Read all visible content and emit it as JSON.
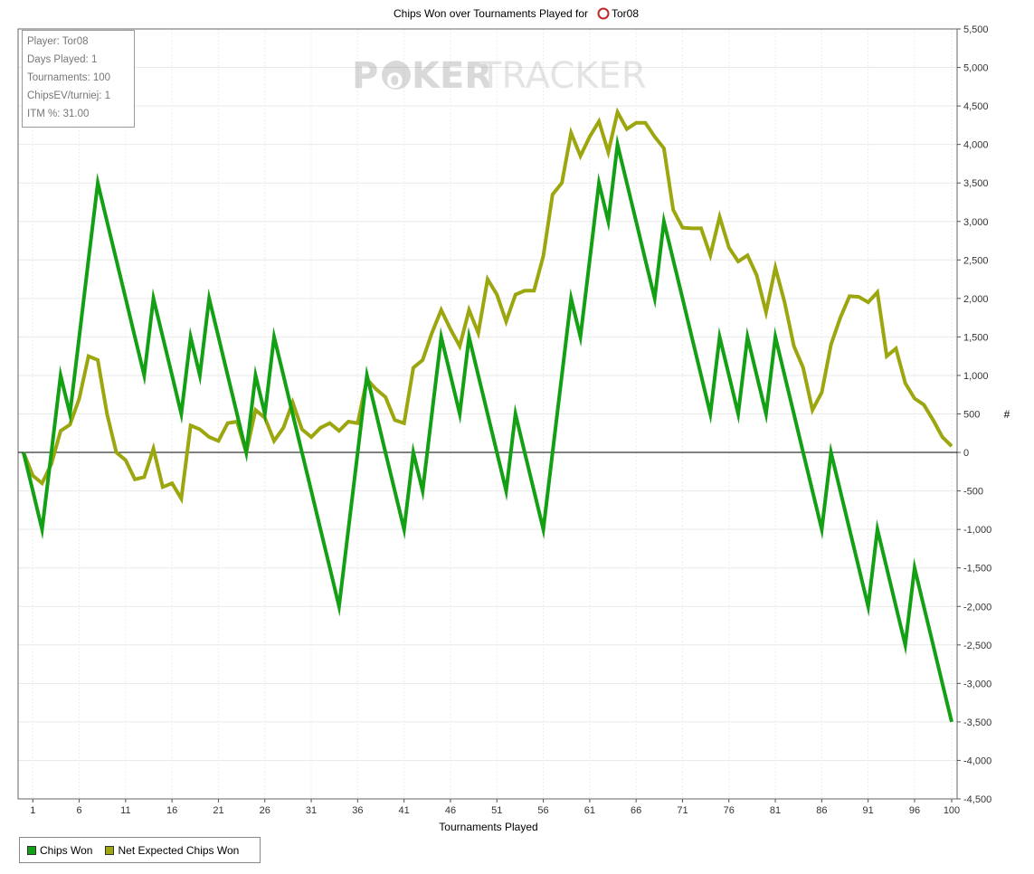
{
  "chart_data": {
    "type": "line",
    "title": "Chips Won over Tournaments Played for",
    "player_name": "Tor08",
    "player_icon": "red-pokerstars-icon",
    "xlabel": "Tournaments Played",
    "ylabel": "#",
    "xlim": [
      1,
      100
    ],
    "ylim": [
      -4500,
      5500
    ],
    "x_ticks": [
      "1",
      "6",
      "11",
      "16",
      "21",
      "26",
      "31",
      "36",
      "41",
      "46",
      "51",
      "56",
      "61",
      "66",
      "71",
      "76",
      "81",
      "86",
      "91",
      "96",
      "100"
    ],
    "y_ticks": [
      "5,500",
      "5,000",
      "4,500",
      "4,000",
      "3,500",
      "3,000",
      "2,500",
      "2,000",
      "1,500",
      "1,000",
      "500",
      "0",
      "-500",
      "-1,000",
      "-1,500",
      "-2,000",
      "-2,500",
      "-3,000",
      "-3,500",
      "-4,000",
      "-4,500"
    ],
    "grid": true,
    "legend_position": "bottom-left",
    "series": [
      {
        "name": "Chips Won",
        "color": "#14a014",
        "x": [
          0,
          1,
          2,
          3,
          4,
          5,
          6,
          7,
          8,
          9,
          10,
          11,
          12,
          13,
          14,
          15,
          16,
          17,
          18,
          19,
          20,
          21,
          22,
          23,
          24,
          25,
          26,
          27,
          28,
          29,
          30,
          31,
          32,
          33,
          34,
          35,
          36,
          37,
          38,
          39,
          40,
          41,
          42,
          43,
          44,
          45,
          46,
          47,
          48,
          49,
          50,
          51,
          52,
          53,
          54,
          55,
          56,
          57,
          58,
          59,
          60,
          61,
          62,
          63,
          64,
          65,
          66,
          67,
          68,
          69,
          70,
          71,
          72,
          73,
          74,
          75,
          76,
          77,
          78,
          79,
          80,
          81,
          82,
          83,
          84,
          85,
          86,
          87,
          88,
          89,
          90,
          91,
          92,
          93,
          94,
          95,
          96,
          97,
          98,
          99,
          100
        ],
        "values": [
          0,
          -500,
          -1000,
          0,
          1000,
          500,
          1500,
          2500,
          3500,
          3000,
          2500,
          2000,
          1500,
          1000,
          2000,
          1500,
          1000,
          500,
          1500,
          1000,
          2000,
          1500,
          1000,
          500,
          0,
          1000,
          500,
          1500,
          1000,
          500,
          0,
          -500,
          -1000,
          -1500,
          -2000,
          -1000,
          0,
          1000,
          500,
          0,
          -500,
          -1000,
          0,
          -500,
          500,
          1500,
          1000,
          500,
          1500,
          1000,
          500,
          0,
          -500,
          500,
          0,
          -500,
          -1000,
          0,
          1000,
          2000,
          1500,
          2500,
          3500,
          3000,
          4000,
          3500,
          3000,
          2500,
          2000,
          3000,
          2500,
          2000,
          1500,
          1000,
          500,
          1500,
          1000,
          500,
          1500,
          1000,
          500,
          1500,
          1000,
          500,
          0,
          -500,
          -1000,
          0,
          -500,
          -1000,
          -1500,
          -2000,
          -1000,
          -1500,
          -2000,
          -2500,
          -1500,
          -2000,
          -2500,
          -3000,
          -3500
        ]
      },
      {
        "name": "Net Expected Chips Won",
        "color": "#9ca60f",
        "x": [
          0,
          1,
          2,
          3,
          4,
          5,
          6,
          7,
          8,
          9,
          10,
          11,
          12,
          13,
          14,
          15,
          16,
          17,
          18,
          19,
          20,
          21,
          22,
          23,
          24,
          25,
          26,
          27,
          28,
          29,
          30,
          31,
          32,
          33,
          34,
          35,
          36,
          37,
          38,
          39,
          40,
          41,
          42,
          43,
          44,
          45,
          46,
          47,
          48,
          49,
          50,
          51,
          52,
          53,
          54,
          55,
          56,
          57,
          58,
          59,
          60,
          61,
          62,
          63,
          64,
          65,
          66,
          67,
          68,
          69,
          70,
          71,
          72,
          73,
          74,
          75,
          76,
          77,
          78,
          79,
          80,
          81,
          82,
          83,
          84,
          85,
          86,
          87,
          88,
          89,
          90,
          91,
          92,
          93,
          94,
          95,
          96,
          97,
          98,
          99,
          100
        ],
        "values": [
          0,
          -300,
          -400,
          -150,
          280,
          360,
          700,
          1250,
          1200,
          500,
          0,
          -100,
          -350,
          -320,
          50,
          -450,
          -400,
          -600,
          350,
          300,
          200,
          150,
          380,
          400,
          0,
          550,
          450,
          150,
          320,
          650,
          300,
          200,
          320,
          380,
          280,
          400,
          380,
          950,
          820,
          720,
          420,
          380,
          1100,
          1200,
          1550,
          1850,
          1600,
          1380,
          1850,
          1550,
          2250,
          2050,
          1700,
          2050,
          2100,
          2100,
          2550,
          3350,
          3500,
          4150,
          3850,
          4100,
          4300,
          3900,
          4420,
          4200,
          4280,
          4280,
          4100,
          3950,
          3150,
          2920,
          2910,
          2910,
          2560,
          3060,
          2660,
          2480,
          2560,
          2300,
          1820,
          2400,
          1950,
          1380,
          1100,
          550,
          780,
          1400,
          1750,
          2030,
          2020,
          1950,
          2080,
          1250,
          1350,
          900,
          700,
          620,
          420,
          200,
          80
        ]
      }
    ]
  },
  "watermark": {
    "left": "P",
    "chip": "O",
    "mid": "KER",
    "right": "TRACKER"
  },
  "stats_box": {
    "lines": [
      "Player: Tor08",
      "Days Played: 1",
      "Tournaments: 100",
      "ChipsEV/turniej: 1",
      "ITM %: 31.00"
    ]
  },
  "legend": {
    "items": [
      {
        "label": "Chips Won",
        "color": "#14a014"
      },
      {
        "label": "Net Expected Chips Won",
        "color": "#9ca60f"
      }
    ]
  }
}
